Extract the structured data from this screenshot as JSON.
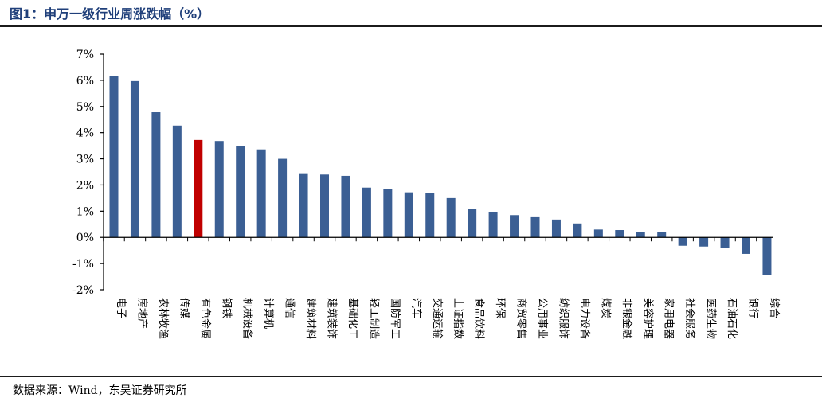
{
  "header": {
    "title": "图1：申万一级行业周涨跌幅（%）"
  },
  "footer": {
    "source": "数据来源：Wind，东吴证券研究所"
  },
  "colors": {
    "bar": "#3b5f94",
    "highlight": "#c00000",
    "axis": "#000000"
  },
  "chart_data": {
    "type": "bar",
    "title": "",
    "xlabel": "",
    "ylabel": "",
    "ylim": [
      -2,
      7
    ],
    "yticks": [
      "7%",
      "6%",
      "5%",
      "4%",
      "3%",
      "2%",
      "1%",
      "0%",
      "-1%",
      "-2%"
    ],
    "highlight": "有色金属",
    "categories": [
      "电子",
      "房地产",
      "农林牧渔",
      "传媒",
      "有色金属",
      "钢铁",
      "机械设备",
      "计算机",
      "通信",
      "建筑材料",
      "建筑装饰",
      "基础化工",
      "轻工制造",
      "国防军工",
      "汽车",
      "交通运输",
      "上证指数",
      "食品饮料",
      "环保",
      "商贸零售",
      "公用事业",
      "纺织服饰",
      "电力设备",
      "煤炭",
      "非银金融",
      "美容护理",
      "家用电器",
      "社会服务",
      "医药生物",
      "石油石化",
      "银行",
      "综合"
    ],
    "values": [
      6.15,
      5.97,
      4.78,
      4.27,
      3.72,
      3.68,
      3.5,
      3.36,
      3.0,
      2.45,
      2.4,
      2.35,
      1.9,
      1.85,
      1.72,
      1.68,
      1.5,
      1.08,
      0.98,
      0.85,
      0.8,
      0.68,
      0.53,
      0.3,
      0.28,
      0.2,
      0.2,
      -0.32,
      -0.35,
      -0.4,
      -0.63,
      -1.45
    ]
  }
}
